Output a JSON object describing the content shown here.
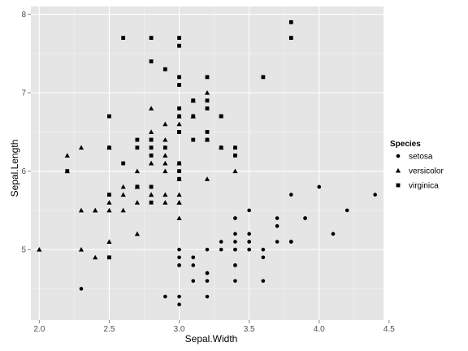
{
  "chart_data": {
    "type": "scatter",
    "xlabel": "Sepal.Width",
    "ylabel": "Sepal.Length",
    "xlim": [
      1.94,
      4.46
    ],
    "ylim": [
      4.1,
      8.1
    ],
    "x_ticks": [
      "2.0",
      "2.5",
      "3.0",
      "3.5",
      "4.0",
      "4.5"
    ],
    "y_ticks": [
      "5",
      "6",
      "7",
      "8"
    ],
    "grid": true,
    "legend_position": "right",
    "legend": {
      "title": "Species",
      "entries": [
        {
          "label": "setosa",
          "shape": "circle"
        },
        {
          "label": "versicolor",
          "shape": "triangle"
        },
        {
          "label": "virginica",
          "shape": "square"
        }
      ]
    },
    "colors": {
      "panel": "#e5e5e5",
      "grid": "#ffffff",
      "points": "#000000"
    },
    "series": [
      {
        "name": "setosa",
        "shape": "circle",
        "x": [
          3.5,
          3.0,
          3.2,
          3.1,
          3.6,
          3.9,
          3.4,
          3.4,
          2.9,
          3.1,
          3.7,
          3.4,
          3.0,
          3.0,
          4.0,
          4.4,
          3.9,
          3.5,
          3.8,
          3.8,
          3.4,
          3.7,
          3.6,
          3.3,
          3.4,
          3.0,
          3.4,
          3.5,
          3.4,
          3.2,
          3.1,
          3.4,
          4.1,
          4.2,
          3.1,
          3.2,
          3.5,
          3.6,
          3.0,
          3.4,
          3.5,
          2.3,
          3.2,
          3.5,
          3.8,
          3.0,
          3.8,
          3.2,
          3.7,
          3.3
        ],
        "y": [
          5.1,
          4.9,
          4.7,
          4.6,
          5.0,
          5.4,
          4.6,
          5.0,
          4.4,
          4.9,
          5.4,
          4.8,
          4.8,
          4.3,
          5.8,
          5.7,
          5.4,
          5.1,
          5.7,
          5.1,
          5.4,
          5.1,
          4.6,
          5.1,
          4.8,
          5.0,
          5.0,
          5.2,
          5.2,
          4.7,
          4.8,
          5.4,
          5.2,
          5.5,
          4.9,
          5.0,
          5.5,
          4.9,
          4.4,
          5.1,
          5.0,
          4.5,
          4.4,
          5.0,
          5.1,
          4.8,
          5.1,
          4.6,
          5.3,
          5.0
        ]
      },
      {
        "name": "versicolor",
        "shape": "triangle",
        "x": [
          3.2,
          3.2,
          3.1,
          2.3,
          2.8,
          2.8,
          3.3,
          2.4,
          2.9,
          2.7,
          2.0,
          3.0,
          2.2,
          2.9,
          2.9,
          3.1,
          3.0,
          2.7,
          2.2,
          2.5,
          3.2,
          2.8,
          2.5,
          2.8,
          2.9,
          3.0,
          2.8,
          3.0,
          2.9,
          2.6,
          2.4,
          2.4,
          2.7,
          2.7,
          3.0,
          3.4,
          3.1,
          2.3,
          3.0,
          2.5,
          2.6,
          3.0,
          2.6,
          2.3,
          2.7,
          3.0,
          2.9,
          2.9,
          2.5,
          2.8
        ],
        "y": [
          7.0,
          6.4,
          6.9,
          5.5,
          6.5,
          5.7,
          6.3,
          4.9,
          6.6,
          5.2,
          5.0,
          5.9,
          6.0,
          6.1,
          5.6,
          6.7,
          5.6,
          5.8,
          6.2,
          5.6,
          5.9,
          6.1,
          6.3,
          6.1,
          6.4,
          6.6,
          6.8,
          6.7,
          6.0,
          5.7,
          5.5,
          5.5,
          5.8,
          6.0,
          5.4,
          6.0,
          6.7,
          6.3,
          5.6,
          5.5,
          5.5,
          6.1,
          5.8,
          5.0,
          5.6,
          5.7,
          5.7,
          6.2,
          5.1,
          5.7
        ]
      },
      {
        "name": "virginica",
        "shape": "square",
        "x": [
          3.3,
          2.7,
          3.0,
          2.9,
          3.0,
          3.0,
          2.5,
          2.9,
          2.5,
          3.6,
          3.2,
          2.7,
          3.0,
          2.5,
          2.8,
          3.2,
          3.0,
          3.8,
          2.6,
          2.2,
          3.2,
          2.8,
          2.8,
          2.7,
          3.3,
          3.2,
          2.8,
          3.0,
          2.8,
          3.0,
          2.8,
          3.8,
          2.8,
          2.8,
          2.6,
          3.0,
          3.4,
          3.1,
          3.0,
          3.1,
          3.1,
          3.1,
          2.7,
          3.2,
          3.3,
          3.0,
          2.5,
          3.0,
          3.4,
          3.0
        ],
        "y": [
          6.3,
          5.8,
          7.1,
          6.3,
          6.5,
          7.6,
          4.9,
          7.3,
          6.7,
          7.2,
          6.5,
          6.4,
          6.8,
          5.7,
          5.8,
          6.4,
          6.5,
          7.7,
          7.7,
          6.0,
          6.9,
          5.6,
          7.7,
          6.3,
          6.7,
          7.2,
          6.2,
          6.1,
          6.4,
          7.2,
          7.4,
          7.9,
          6.4,
          6.3,
          6.1,
          7.7,
          6.3,
          6.4,
          6.0,
          6.9,
          6.7,
          6.9,
          5.8,
          6.8,
          6.7,
          6.7,
          6.3,
          6.5,
          6.2,
          5.9
        ]
      }
    ]
  }
}
